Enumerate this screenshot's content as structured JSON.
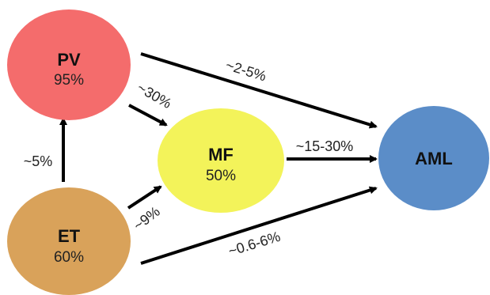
{
  "nodes": {
    "pv": {
      "name": "PV",
      "percent": "95%",
      "color": "#f46c6c"
    },
    "et": {
      "name": "ET",
      "percent": "60%",
      "color": "#d9a25a"
    },
    "mf": {
      "name": "MF",
      "percent": "50%",
      "color": "#f3f35a"
    },
    "aml": {
      "name": "AML",
      "percent": "",
      "color": "#5b8dc8"
    }
  },
  "edges": {
    "et_pv": {
      "label": "~5%"
    },
    "pv_mf": {
      "label": "~30%"
    },
    "et_mf": {
      "label": "~9%"
    },
    "pv_aml": {
      "label": "~2-5%"
    },
    "mf_aml": {
      "label": "~15-30%"
    },
    "et_aml": {
      "label": "~0.6-6%"
    }
  }
}
